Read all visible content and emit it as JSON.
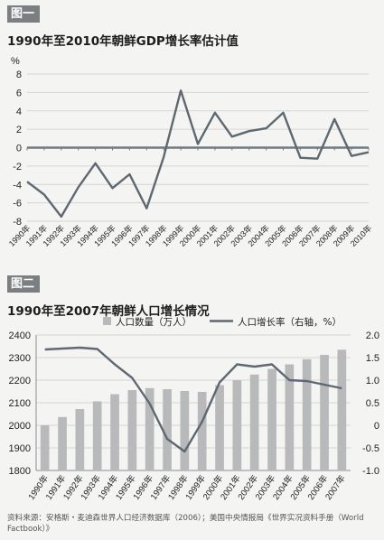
{
  "figures": {
    "fig1_tag": "图一",
    "fig1_title": "1990年至2010年朝鲜GDP增长率估计值",
    "fig2_tag": "图二",
    "fig2_title": "1990年至2007年朝鲜人口增长情况"
  },
  "source_note": "资料来源：安格斯・麦迪森世界人口经济数据库（2006）；美国中央情报局《世界实况资料手册（World Factbook）》",
  "colors": {
    "line": "#5e6871",
    "bar": "#b8b9ba",
    "grid": "#d4d5d6",
    "zero_line": "#6f7a84"
  },
  "chart_data": [
    {
      "type": "line",
      "title": "1990年至2010年朝鲜GDP增长率估计值",
      "ylabel": "%",
      "ylim": [
        -8,
        8
      ],
      "yticks": [
        "8",
        "6",
        "4",
        "2",
        "0",
        "-2",
        "-4",
        "-6",
        "-8"
      ],
      "grid": true,
      "x": [
        "1990年",
        "1991年",
        "1992年",
        "1993年",
        "1994年",
        "1995年",
        "1996年",
        "1997年",
        "1998年",
        "1999年",
        "2000年",
        "2001年",
        "2002年",
        "2003年",
        "2004年",
        "2005年",
        "2006年",
        "2007年",
        "2008年",
        "2009年",
        "2010年"
      ],
      "values": [
        -3.7,
        -5.1,
        -7.5,
        -4.3,
        -1.7,
        -4.4,
        -2.9,
        -6.6,
        -1.0,
        6.2,
        0.4,
        3.8,
        1.2,
        1.8,
        2.1,
        3.8,
        -1.1,
        -1.2,
        3.1,
        -0.9,
        -0.5
      ]
    },
    {
      "type": "bar+line",
      "title": "1990年至2007年朝鲜人口增长情况",
      "legend": [
        "人口数量（万人）",
        "人口增长率（右轴，%）"
      ],
      "legend_position": "top",
      "categories": [
        "1990年",
        "1991年",
        "1992年",
        "1993年",
        "1994年",
        "1995年",
        "1996年",
        "1997年",
        "1998年",
        "1999年",
        "2000年",
        "2001年",
        "2002年",
        "2003年",
        "2004年",
        "2005年",
        "2006年",
        "2007年"
      ],
      "ylim_left": [
        1800,
        2400
      ],
      "yticks_left": [
        "2400",
        "2300",
        "2200",
        "2100",
        "2000",
        "1900",
        "1800"
      ],
      "ylim_right": [
        -1.0,
        2.0
      ],
      "yticks_right": [
        "2.0",
        "1.5",
        "1.0",
        "0.5",
        "0",
        "-0.5",
        "-1.0"
      ],
      "grid": true,
      "series": [
        {
          "name": "人口数量（万人）",
          "kind": "bar",
          "axis": "left",
          "values": [
            2000,
            2037,
            2072,
            2106,
            2138,
            2156,
            2165,
            2160,
            2152,
            2148,
            2178,
            2200,
            2225,
            2250,
            2270,
            2293,
            2312,
            2335
          ]
        },
        {
          "name": "人口增长率（右轴，%）",
          "kind": "line",
          "axis": "right",
          "values": [
            1.68,
            1.7,
            1.72,
            1.69,
            1.35,
            1.05,
            0.48,
            -0.3,
            -0.58,
            0.08,
            0.95,
            1.35,
            1.3,
            1.35,
            1.0,
            0.98,
            0.9,
            0.82
          ]
        }
      ]
    }
  ]
}
